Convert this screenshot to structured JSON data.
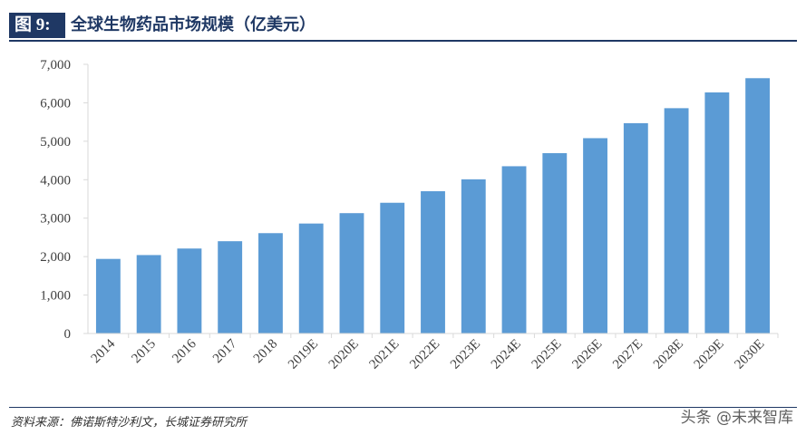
{
  "header": {
    "figure_label": "图 9:",
    "title": "全球生物药品市场规模（亿美元）"
  },
  "footer": {
    "source": "资料来源：佛诺斯特沙利文，长城证券研究所",
    "watermark": "头条 @未来智库"
  },
  "chart_data": {
    "type": "bar",
    "title": "全球生物药品市场规模（亿美元）",
    "xlabel": "",
    "ylabel": "",
    "categories": [
      "2014",
      "2015",
      "2016",
      "2017",
      "2018",
      "2019E",
      "2020E",
      "2021E",
      "2022E",
      "2023E",
      "2024E",
      "2025E",
      "2026E",
      "2027E",
      "2028E",
      "2029E",
      "2030E"
    ],
    "values": [
      1940,
      2040,
      2210,
      2400,
      2610,
      2860,
      3130,
      3400,
      3700,
      4010,
      4350,
      4690,
      5080,
      5470,
      5860,
      6270,
      6640
    ],
    "ylim": [
      0,
      7000
    ],
    "yticks": [
      0,
      1000,
      2000,
      3000,
      4000,
      5000,
      6000,
      7000
    ],
    "ytick_labels": [
      "0",
      "1,000",
      "2,000",
      "3,000",
      "4,000",
      "5,000",
      "6,000",
      "7,000"
    ],
    "grid": false,
    "legend": "none",
    "bar_color": "#5b9bd5",
    "axis_color": "#d9d9d9"
  }
}
